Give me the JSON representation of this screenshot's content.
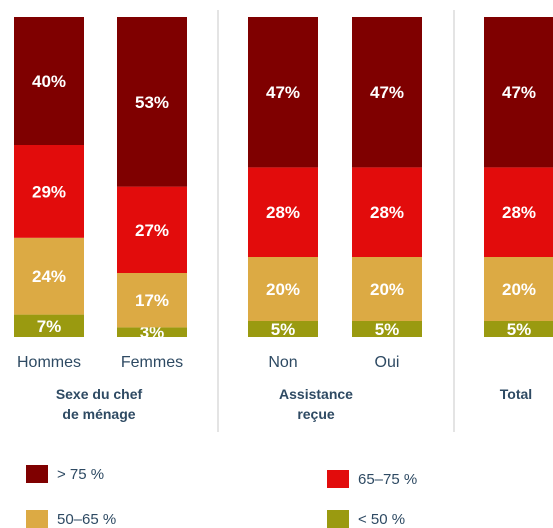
{
  "chart_data": {
    "type": "bar",
    "stacked": true,
    "percent": true,
    "categories": [
      "Hommes",
      "Femmes",
      "Non",
      "Oui",
      ""
    ],
    "groups": [
      {
        "label": [
          "Sexe du chef",
          "de ménage"
        ],
        "categories": [
          "Hommes",
          "Femmes"
        ]
      },
      {
        "label": [
          "Assistance",
          "reçue"
        ],
        "categories": [
          "Non",
          "Oui"
        ]
      },
      {
        "label": [
          "Total"
        ],
        "categories": [
          ""
        ]
      }
    ],
    "series": [
      {
        "name": "< 50 %",
        "color": "#9a9a10",
        "values": [
          7,
          3,
          5,
          5,
          5
        ],
        "labels": [
          "7%",
          "3%",
          "5%",
          "5%",
          "5%"
        ]
      },
      {
        "name": "50–65 %",
        "color": "#dcaa44",
        "values": [
          24,
          17,
          20,
          20,
          20
        ],
        "labels": [
          "24%",
          "17%",
          "20%",
          "20%",
          "20%"
        ]
      },
      {
        "name": "65–75 %",
        "color": "#e20c0c",
        "values": [
          29,
          27,
          28,
          28,
          28
        ],
        "labels": [
          "29%",
          "27%",
          "28%",
          "28%",
          "28%"
        ]
      },
      {
        "name": "> 75 %",
        "color": "#7f0000",
        "values": [
          40,
          53,
          47,
          47,
          47
        ],
        "labels": [
          "40%",
          "53%",
          "47%",
          "47%",
          "47%"
        ]
      }
    ],
    "legend": {
      "position": "bottom",
      "order": [
        "> 75 %",
        "65–75 %",
        "50–65 %",
        "< 50 %"
      ]
    },
    "grid": false
  }
}
